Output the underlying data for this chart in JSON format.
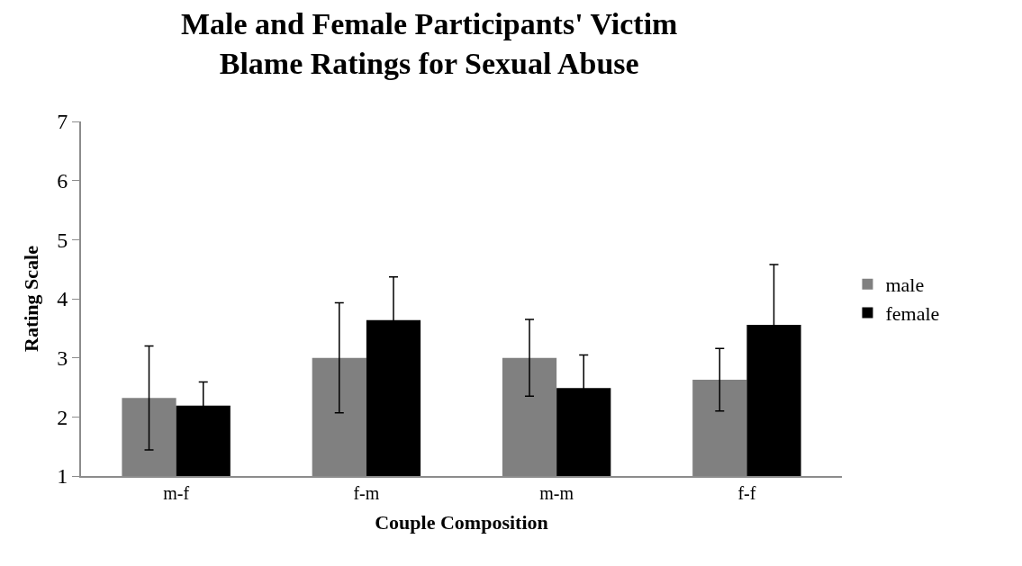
{
  "chart_data": {
    "type": "bar",
    "title": "Male and Female Participants' Victim Blame Ratings for Sexual Abuse",
    "xlabel": "Couple Composition",
    "ylabel": "Rating Scale",
    "categories": [
      "m-f",
      "f-m",
      "m-m",
      "f-f"
    ],
    "series": [
      {
        "name": "male",
        "color": "#808080",
        "values": [
          2.32,
          3.0,
          3.0,
          2.63
        ],
        "errors": [
          0.88,
          0.93,
          0.65,
          0.53
        ]
      },
      {
        "name": "female",
        "color": "#000000",
        "values": [
          2.19,
          3.64,
          2.49,
          3.56
        ],
        "errors": [
          0.4,
          0.73,
          0.56,
          1.02
        ]
      }
    ],
    "ylim": [
      1,
      7
    ],
    "yticks": [
      1,
      2,
      3,
      4,
      5,
      6,
      7
    ],
    "legend": "right"
  }
}
